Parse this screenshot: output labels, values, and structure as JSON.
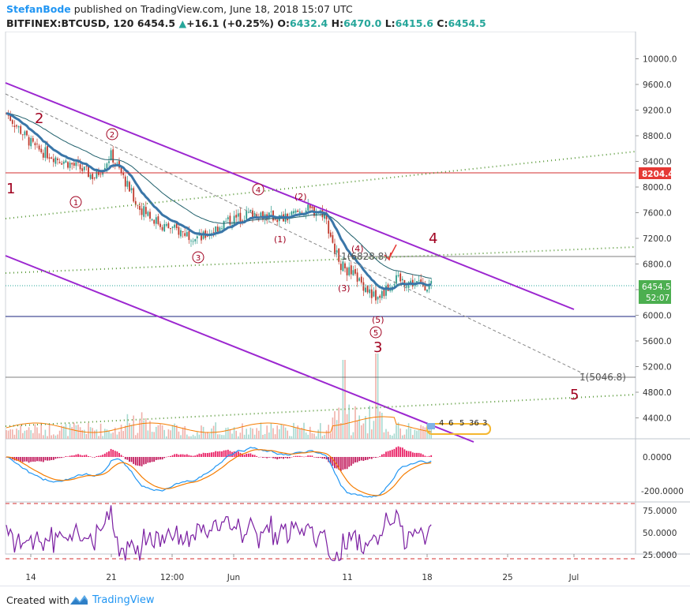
{
  "header": {
    "author": "StefanBode",
    "published_text": " published on TradingView.com, June 18, 2018 15:07 UTC",
    "symbol": "BITFINEX:BTCUSD, 120",
    "last": "6454.5",
    "change_arrow": "▲",
    "change": "+16.1 (+0.25%)",
    "open_label": "O:",
    "open": "6432.4",
    "high_label": "H:",
    "high": "6470.0",
    "low_label": "L:",
    "low": "6415.6",
    "close_label": "C:",
    "close": "6454.5"
  },
  "footer": {
    "created_with": "Created with",
    "brand": "TradingView"
  },
  "colors": {
    "purple": "#9c27d0",
    "green_dotted": "#5a9a3a",
    "red_line": "#d32f2f",
    "navy_line": "#1a237e",
    "ema": "#3a76a8",
    "wave_label": "#a0001f",
    "price_badge": "#4caf50",
    "level_badge": "#e53935"
  },
  "price_axis": {
    "ticks": [
      "10000.0",
      "9600.0",
      "9200.0",
      "8800.0",
      "8400.0",
      "8000.0",
      "7600.0",
      "7200.0",
      "6800.0",
      "6400.0",
      "6000.0",
      "5600.0",
      "5200.0",
      "4800.0",
      "4400.0"
    ],
    "badge_level": "8204.4",
    "badge_price": "6454.5",
    "badge_timer": "52:07"
  },
  "macd_axis": {
    "ticks": [
      "0.0000",
      "-200.0000"
    ]
  },
  "rsi_axis": {
    "ticks": [
      "75.0000",
      "50.0000",
      "25.0000"
    ]
  },
  "time_axis": {
    "ticks": [
      "14",
      "21",
      "12:00",
      "Jun",
      "11",
      "18",
      "25",
      "Jul"
    ]
  },
  "annotations": {
    "fib_upper": "1(6828.8)",
    "fib_lower": "1(5046.8)",
    "minor_small": [
      "4",
      "6",
      "5",
      "36",
      "3"
    ]
  },
  "chart_data": {
    "type": "candlestick",
    "symbol": "BITFINEX:BTCUSD",
    "interval": "120",
    "ohlc_last": {
      "open": 6432.4,
      "high": 6470.0,
      "low": 6415.6,
      "close": 6454.5
    },
    "price_range": [
      4100,
      10300
    ],
    "key_levels": [
      8204.4,
      6000.0
    ],
    "fib_targets": [
      6828.8,
      5046.8
    ],
    "approx_path": [
      {
        "t": "May 10",
        "price": 9150
      },
      {
        "t": "May 12",
        "price": 8600
      },
      {
        "t": "May 14",
        "price": 8700
      },
      {
        "t": "May 17",
        "price": 8300
      },
      {
        "t": "May 19",
        "price": 8150
      },
      {
        "t": "May 21",
        "price": 8500
      },
      {
        "t": "May 23",
        "price": 7700
      },
      {
        "t": "May 25",
        "price": 7400
      },
      {
        "t": "May 28",
        "price": 7200
      },
      {
        "t": "May 30",
        "price": 7450
      },
      {
        "t": "Jun 2",
        "price": 7600
      },
      {
        "t": "Jun 5",
        "price": 7500
      },
      {
        "t": "Jun 7",
        "price": 7650
      },
      {
        "t": "Jun 9",
        "price": 7600
      },
      {
        "t": "Jun 10",
        "price": 6800
      },
      {
        "t": "Jun 12",
        "price": 6600
      },
      {
        "t": "Jun 13",
        "price": 6250
      },
      {
        "t": "Jun 15",
        "price": 6550
      },
      {
        "t": "Jun 18",
        "price": 6454.5
      }
    ],
    "wave_labels": [
      {
        "label": "1",
        "t": "May 10",
        "price": 8000
      },
      {
        "label": "2",
        "t": "May 12",
        "price": 9100
      },
      {
        "label": "3",
        "t": "Jun 13",
        "price": 5800
      },
      {
        "label": "4",
        "t": "Jun 18",
        "price": 7200
      },
      {
        "label": "5",
        "t": "Jul 1",
        "price": 4800
      },
      {
        "label": "(1)",
        "t": "Jun 7",
        "price": 7200
      },
      {
        "label": "(2)",
        "t": "Jun 9",
        "price": 7800
      },
      {
        "label": "(3)",
        "t": "Jun 12",
        "price": 6450
      },
      {
        "label": "(4)",
        "t": "Jun 12",
        "price": 6840
      },
      {
        "label": "(5)",
        "t": "Jun 13",
        "price": 6000
      },
      {
        "label": "1",
        "t": "May 17",
        "price": 7800
      },
      {
        "label": "2",
        "t": "May 21",
        "price": 8850
      },
      {
        "label": "3",
        "t": "May 28",
        "price": 6900
      },
      {
        "label": "4",
        "t": "Jun 4",
        "price": 8000
      },
      {
        "label": "5",
        "t": "Jun 13",
        "price": 5800
      }
    ],
    "macd": {
      "ticks": [
        0,
        -200
      ]
    },
    "rsi": {
      "ticks": [
        75,
        50,
        25
      ],
      "overbought": 80,
      "oversold": 20
    }
  }
}
